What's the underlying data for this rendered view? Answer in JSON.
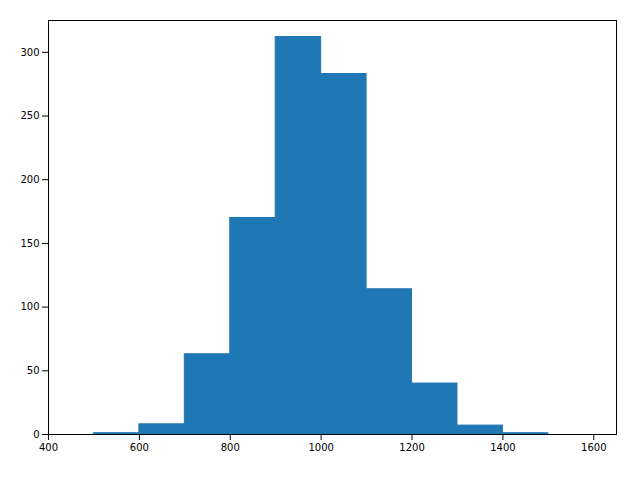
{
  "chart_data": {
    "type": "histogram",
    "bins": [
      400,
      500,
      600,
      700,
      800,
      900,
      1000,
      1100,
      1200,
      1300,
      1400,
      1500,
      1600
    ],
    "counts": [
      0,
      1,
      8,
      63,
      170,
      312,
      283,
      114,
      40,
      7,
      1,
      0
    ],
    "color": "#1f77b4",
    "xlim": [
      400,
      1650
    ],
    "ylim": [
      0,
      325
    ],
    "xticks": [
      400,
      600,
      800,
      1000,
      1200,
      1400,
      1600
    ],
    "yticks": [
      0,
      50,
      100,
      150,
      200,
      250,
      300
    ]
  }
}
